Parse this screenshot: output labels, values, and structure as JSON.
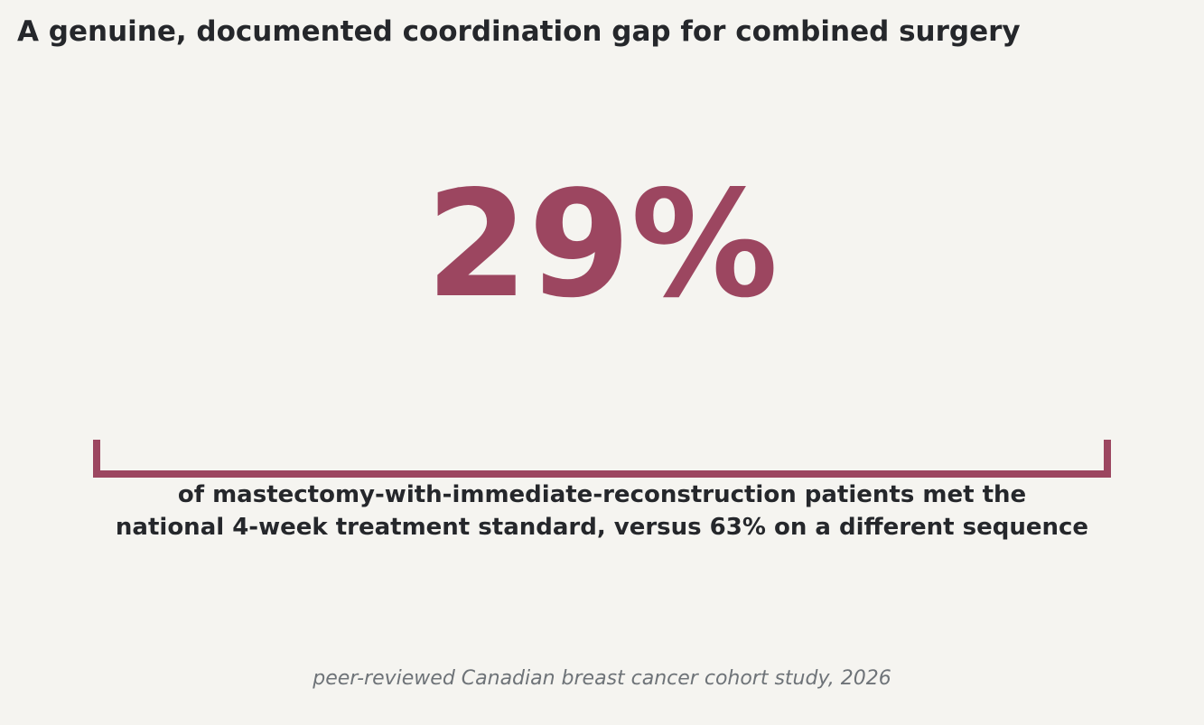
{
  "title": "A genuine, documented coordination gap for combined surgery",
  "stat": {
    "value": "29%",
    "color": "#9c4660"
  },
  "description": {
    "line1": "of mastectomy-with-immediate-reconstruction patients met the",
    "line2": "national 4-week treatment standard, versus 63% on a different sequence"
  },
  "source": "peer-reviewed Canadian breast cancer cohort study, 2026",
  "colors": {
    "background": "#f5f4f0",
    "text": "#25272b",
    "accent": "#9c4660",
    "muted": "#6e7378"
  }
}
